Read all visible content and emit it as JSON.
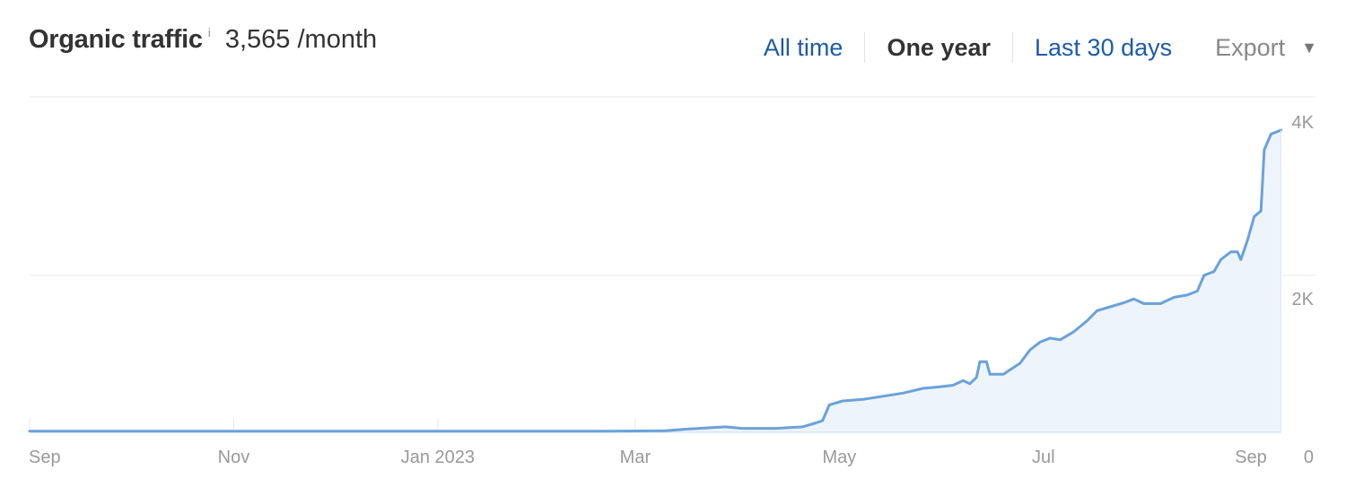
{
  "header": {
    "title": "Organic traffic",
    "info_icon": "i",
    "metric_value": "3,565",
    "metric_unit": "/month",
    "controls": [
      {
        "label": "All time",
        "state": "link"
      },
      {
        "label": "One year",
        "state": "active"
      },
      {
        "label": "Last 30 days",
        "state": "link"
      }
    ],
    "export_label": "Export",
    "export_icon": "chevron-down-icon"
  },
  "colors": {
    "line": "#6aa2da",
    "fill": "#eef4fc",
    "grid": "#e8e8e8",
    "link": "#1f5ba6"
  },
  "chart_data": {
    "type": "area",
    "x_unit": "date",
    "ylim": [
      0,
      4000
    ],
    "y_ticks": [
      {
        "value": 0,
        "label": "0"
      },
      {
        "value": 2000,
        "label": "2K"
      },
      {
        "value": 4000,
        "label": "4K"
      }
    ],
    "x_ticks": [
      {
        "date": "2022-09-01",
        "label": "Sep"
      },
      {
        "date": "2022-11-01",
        "label": "Nov"
      },
      {
        "date": "2023-01-01",
        "label": "Jan 2023"
      },
      {
        "date": "2023-03-01",
        "label": "Mar"
      },
      {
        "date": "2023-05-01",
        "label": "May"
      },
      {
        "date": "2023-07-01",
        "label": "Jul"
      },
      {
        "date": "2023-09-01",
        "label": "Sep"
      }
    ],
    "series": [
      {
        "points": [
          [
            "2022-09-01",
            15
          ],
          [
            "2022-10-15",
            15
          ],
          [
            "2022-12-01",
            15
          ],
          [
            "2023-01-15",
            15
          ],
          [
            "2023-02-20",
            15
          ],
          [
            "2023-03-10",
            20
          ],
          [
            "2023-03-16",
            40
          ],
          [
            "2023-03-24",
            60
          ],
          [
            "2023-03-28",
            70
          ],
          [
            "2023-04-02",
            50
          ],
          [
            "2023-04-12",
            50
          ],
          [
            "2023-04-20",
            70
          ],
          [
            "2023-04-24",
            120
          ],
          [
            "2023-04-26",
            150
          ],
          [
            "2023-04-28",
            350
          ],
          [
            "2023-05-02",
            400
          ],
          [
            "2023-05-08",
            420
          ],
          [
            "2023-05-14",
            460
          ],
          [
            "2023-05-20",
            500
          ],
          [
            "2023-05-26",
            560
          ],
          [
            "2023-05-31",
            580
          ],
          [
            "2023-06-04",
            600
          ],
          [
            "2023-06-07",
            660
          ],
          [
            "2023-06-09",
            620
          ],
          [
            "2023-06-11",
            700
          ],
          [
            "2023-06-12",
            900
          ],
          [
            "2023-06-14",
            900
          ],
          [
            "2023-06-15",
            740
          ],
          [
            "2023-06-19",
            740
          ],
          [
            "2023-06-24",
            880
          ],
          [
            "2023-06-27",
            1050
          ],
          [
            "2023-06-30",
            1150
          ],
          [
            "2023-07-03",
            1200
          ],
          [
            "2023-07-06",
            1180
          ],
          [
            "2023-07-10",
            1280
          ],
          [
            "2023-07-14",
            1420
          ],
          [
            "2023-07-17",
            1550
          ],
          [
            "2023-07-21",
            1600
          ],
          [
            "2023-07-25",
            1650
          ],
          [
            "2023-07-28",
            1700
          ],
          [
            "2023-07-31",
            1640
          ],
          [
            "2023-08-05",
            1640
          ],
          [
            "2023-08-09",
            1720
          ],
          [
            "2023-08-13",
            1750
          ],
          [
            "2023-08-16",
            1800
          ],
          [
            "2023-08-18",
            2000
          ],
          [
            "2023-08-21",
            2050
          ],
          [
            "2023-08-23",
            2200
          ],
          [
            "2023-08-26",
            2300
          ],
          [
            "2023-08-28",
            2300
          ],
          [
            "2023-08-29",
            2200
          ],
          [
            "2023-08-31",
            2450
          ],
          [
            "2023-09-02",
            2750
          ],
          [
            "2023-09-04",
            2820
          ],
          [
            "2023-09-05",
            3600
          ],
          [
            "2023-09-07",
            3800
          ],
          [
            "2023-09-10",
            3850
          ]
        ]
      }
    ]
  }
}
